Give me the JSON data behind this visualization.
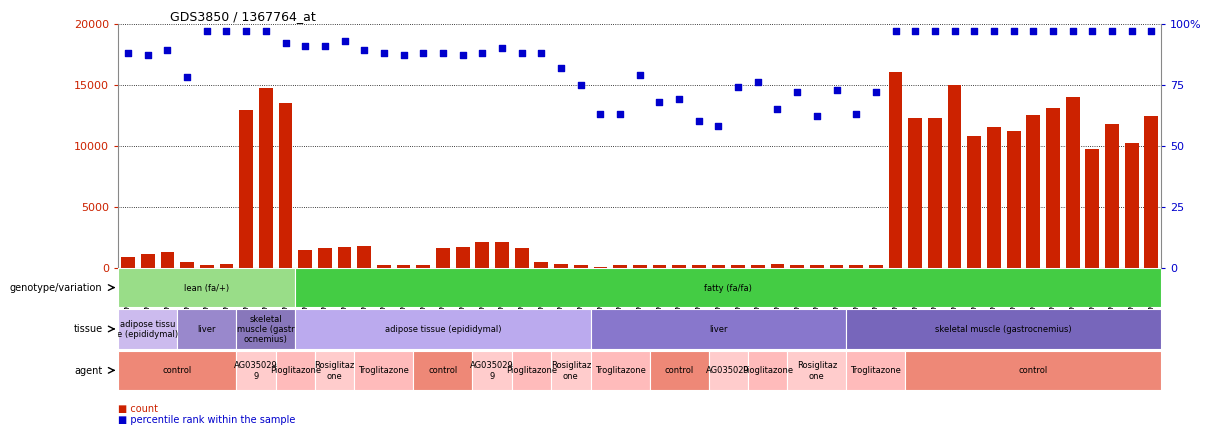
{
  "title": "GDS3850 / 1367764_at",
  "samples": [
    "GSM532993",
    "GSM532994",
    "GSM532995",
    "GSM533011",
    "GSM533012",
    "GSM533013",
    "GSM533029",
    "GSM533030",
    "GSM533031",
    "GSM532987",
    "GSM532988",
    "GSM532989",
    "GSM532996",
    "GSM532997",
    "GSM532998",
    "GSM532999",
    "GSM533000",
    "GSM533001",
    "GSM533002",
    "GSM533003",
    "GSM533004",
    "GSM532990",
    "GSM532991",
    "GSM532992",
    "GSM533005",
    "GSM533006",
    "GSM533007",
    "GSM533014",
    "GSM533015",
    "GSM533016",
    "GSM533017",
    "GSM533018",
    "GSM533019",
    "GSM533020",
    "GSM533021",
    "GSM533022",
    "GSM533008",
    "GSM533009",
    "GSM533010",
    "GSM533023",
    "GSM533024",
    "GSM533025",
    "GSM533033",
    "GSM533034",
    "GSM533035",
    "GSM533036",
    "GSM533037",
    "GSM533038",
    "GSM533039",
    "GSM533040",
    "GSM533026",
    "GSM533027",
    "GSM533028"
  ],
  "counts": [
    900,
    1100,
    1300,
    500,
    200,
    300,
    12900,
    14700,
    13500,
    1500,
    1600,
    1700,
    1800,
    200,
    200,
    200,
    1600,
    1700,
    2100,
    2100,
    1600,
    500,
    300,
    200,
    100,
    200,
    200,
    200,
    200,
    200,
    200,
    200,
    200,
    300,
    200,
    200,
    200,
    200,
    200,
    16000,
    12300,
    12300,
    15000,
    10800,
    11500,
    11200,
    12500,
    13100,
    14000,
    9700,
    11800,
    10200,
    12400
  ],
  "percentiles": [
    88,
    87,
    89,
    78,
    97,
    97,
    97,
    97,
    92,
    91,
    91,
    93,
    89,
    88,
    87,
    88,
    88,
    87,
    88,
    90,
    88,
    88,
    82,
    75,
    63,
    63,
    79,
    68,
    69,
    60,
    58,
    74,
    76,
    65,
    72,
    62,
    73,
    63,
    72,
    97,
    97,
    97,
    97,
    97,
    97,
    97,
    97,
    97,
    97,
    97,
    97,
    97,
    97
  ],
  "bar_color": "#cc2200",
  "dot_color": "#0000cc",
  "left_ytick_labels": [
    "0",
    "5000",
    "10000",
    "15000",
    "20000"
  ],
  "right_ytick_labels": [
    "0",
    "25",
    "50",
    "75",
    "100%"
  ],
  "geno_groups": [
    {
      "label": "lean (fa/+)",
      "start": 0,
      "end": 9,
      "color": "#99dd88"
    },
    {
      "label": "fatty (fa/fa)",
      "start": 9,
      "end": 53,
      "color": "#44cc44"
    }
  ],
  "tissue_groups": [
    {
      "label": "adipose tissu\ne (epididymal)",
      "start": 0,
      "end": 3,
      "color": "#ccbbee"
    },
    {
      "label": "liver",
      "start": 3,
      "end": 6,
      "color": "#9988cc"
    },
    {
      "label": "skeletal\nmuscle (gastr\nocnemius)",
      "start": 6,
      "end": 9,
      "color": "#8877bb"
    },
    {
      "label": "adipose tissue (epididymal)",
      "start": 9,
      "end": 24,
      "color": "#bbaaee"
    },
    {
      "label": "liver",
      "start": 24,
      "end": 37,
      "color": "#8877cc"
    },
    {
      "label": "skeletal muscle (gastrocnemius)",
      "start": 37,
      "end": 53,
      "color": "#7766bb"
    }
  ],
  "agent_groups": [
    {
      "label": "control",
      "start": 0,
      "end": 6,
      "color": "#ee8877"
    },
    {
      "label": "AG035029\n9",
      "start": 6,
      "end": 8,
      "color": "#ffcccc"
    },
    {
      "label": "Pioglitazone",
      "start": 8,
      "end": 10,
      "color": "#ffbbbb"
    },
    {
      "label": "Rosiglitaz\none",
      "start": 10,
      "end": 12,
      "color": "#ffcccc"
    },
    {
      "label": "Troglitazone",
      "start": 12,
      "end": 15,
      "color": "#ffbbbb"
    },
    {
      "label": "control",
      "start": 15,
      "end": 18,
      "color": "#ee8877"
    },
    {
      "label": "AG035029\n9",
      "start": 18,
      "end": 20,
      "color": "#ffcccc"
    },
    {
      "label": "Pioglitazone",
      "start": 20,
      "end": 22,
      "color": "#ffbbbb"
    },
    {
      "label": "Rosiglitaz\none",
      "start": 22,
      "end": 24,
      "color": "#ffcccc"
    },
    {
      "label": "Troglitazone",
      "start": 24,
      "end": 27,
      "color": "#ffbbbb"
    },
    {
      "label": "control",
      "start": 27,
      "end": 30,
      "color": "#ee8877"
    },
    {
      "label": "AG035029",
      "start": 30,
      "end": 32,
      "color": "#ffcccc"
    },
    {
      "label": "Pioglitazone",
      "start": 32,
      "end": 34,
      "color": "#ffbbbb"
    },
    {
      "label": "Rosiglitaz\none",
      "start": 34,
      "end": 37,
      "color": "#ffcccc"
    },
    {
      "label": "Troglitazone",
      "start": 37,
      "end": 40,
      "color": "#ffbbbb"
    },
    {
      "label": "control",
      "start": 40,
      "end": 53,
      "color": "#ee8877"
    }
  ]
}
